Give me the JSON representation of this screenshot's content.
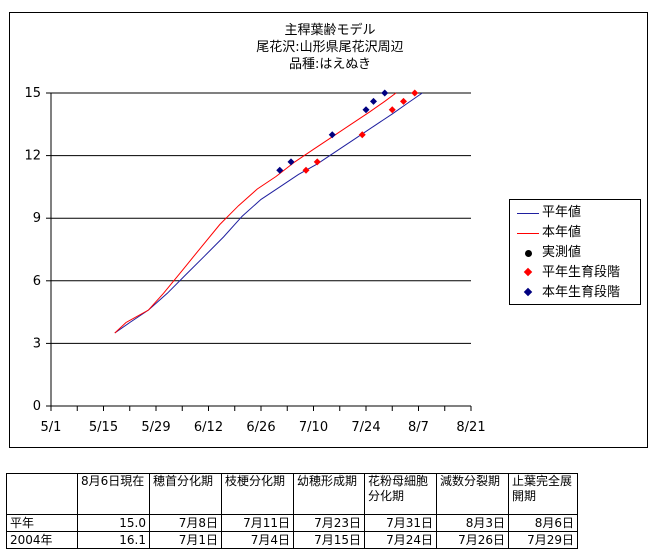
{
  "chart_data": {
    "type": "line",
    "title_lines": [
      "主稈葉齢モデル",
      "尾花沢:山形県尾花沢周辺",
      "品種:はえぬき"
    ],
    "x_ticks": [
      "5/1",
      "5/15",
      "5/29",
      "6/12",
      "6/26",
      "7/10",
      "7/24",
      "8/7",
      "8/21"
    ],
    "y_ticks": [
      "0",
      "3",
      "6",
      "9",
      "12",
      "15"
    ],
    "xlim": [
      "5/1",
      "8/21"
    ],
    "ylim": [
      0,
      15
    ],
    "grid": "horizontal",
    "legend_position": "right",
    "series": [
      {
        "name": "平年値",
        "style": "line",
        "color": "#1f1f9f",
        "points": [
          [
            "5/18",
            3.5
          ],
          [
            "5/22",
            4.0
          ],
          [
            "5/27",
            4.6
          ],
          [
            "6/1",
            5.4
          ],
          [
            "6/6",
            6.3
          ],
          [
            "6/11",
            7.2
          ],
          [
            "6/16",
            8.1
          ],
          [
            "6/21",
            9.1
          ],
          [
            "6/26",
            9.9
          ],
          [
            "7/1",
            10.5
          ],
          [
            "7/6",
            11.1
          ],
          [
            "7/11",
            11.6
          ],
          [
            "7/16",
            12.2
          ],
          [
            "7/21",
            12.8
          ],
          [
            "7/26",
            13.4
          ],
          [
            "7/31",
            14.0
          ],
          [
            "8/4",
            14.5
          ],
          [
            "8/8",
            15.0
          ]
        ]
      },
      {
        "name": "本年値",
        "style": "line",
        "color": "#ff0000",
        "points": [
          [
            "5/18",
            3.5
          ],
          [
            "5/21",
            4.0
          ],
          [
            "5/27",
            4.6
          ],
          [
            "5/31",
            5.4
          ],
          [
            "6/5",
            6.5
          ],
          [
            "6/10",
            7.6
          ],
          [
            "6/15",
            8.7
          ],
          [
            "6/20",
            9.6
          ],
          [
            "6/25",
            10.4
          ],
          [
            "6/30",
            11.0
          ],
          [
            "7/5",
            11.7
          ],
          [
            "7/10",
            12.3
          ],
          [
            "7/15",
            12.9
          ],
          [
            "7/20",
            13.5
          ],
          [
            "7/25",
            14.1
          ],
          [
            "7/29",
            14.6
          ],
          [
            "8/1",
            15.0
          ]
        ]
      },
      {
        "name": "実測値",
        "style": "marker-circle",
        "color": "#000000",
        "points": []
      },
      {
        "name": "平年生育段階",
        "style": "marker-diamond",
        "color": "#ff0000",
        "points": [
          [
            "7/8",
            11.3
          ],
          [
            "7/11",
            11.7
          ],
          [
            "7/23",
            13.0
          ],
          [
            "7/31",
            14.2
          ],
          [
            "8/3",
            14.6
          ],
          [
            "8/6",
            15.0
          ]
        ]
      },
      {
        "name": "本年生育段階",
        "style": "marker-diamond",
        "color": "#000080",
        "points": [
          [
            "7/1",
            11.3
          ],
          [
            "7/4",
            11.7
          ],
          [
            "7/15",
            13.0
          ],
          [
            "7/24",
            14.2
          ],
          [
            "7/26",
            14.6
          ],
          [
            "7/29",
            15.0
          ]
        ]
      }
    ]
  },
  "table": {
    "headers": [
      "",
      "8月6日現在",
      "穂首分化期",
      "枝梗分化期",
      "幼穂形成期",
      "花粉母細胞分化期",
      "減数分裂期",
      "止葉完全展開期"
    ],
    "rows": [
      [
        "平年",
        "15.0",
        "7月8日",
        "7月11日",
        "7月23日",
        "7月31日",
        "8月3日",
        "8月6日"
      ],
      [
        "2004年",
        "16.1",
        "7月1日",
        "7月4日",
        "7月15日",
        "7月24日",
        "7月26日",
        "7月29日"
      ]
    ]
  }
}
